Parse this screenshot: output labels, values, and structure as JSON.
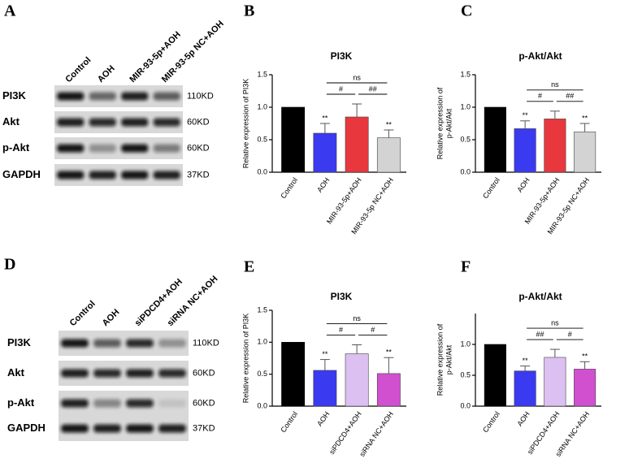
{
  "blots": [
    {
      "panel": "A",
      "lanes": [
        "Control",
        "AOH",
        "MIR-93-5p+AOH",
        "MIR-93-5p NC+AOH"
      ],
      "rows": [
        {
          "protein": "PI3K",
          "size": "110KD"
        },
        {
          "protein": "Akt",
          "size": "60KD"
        },
        {
          "protein": "p-Akt",
          "size": "60KD"
        },
        {
          "protein": "GAPDH",
          "size": "37KD"
        }
      ]
    },
    {
      "panel": "D",
      "lanes": [
        "Control",
        "AOH",
        "siPDCD4+AOH",
        "siRNA NC+AOH"
      ],
      "rows": [
        {
          "protein": "PI3K",
          "size": "110KD"
        },
        {
          "protein": "Akt",
          "size": "60KD"
        },
        {
          "protein": "p-Akt",
          "size": "60KD"
        },
        {
          "protein": "GAPDH",
          "size": "37KD"
        }
      ]
    }
  ],
  "chart_data": [
    {
      "type": "bar",
      "panel": "B",
      "title": "PI3K",
      "ylabel": [
        "Relative expression of PI3K"
      ],
      "categories": [
        "Control",
        "AOH",
        "MIR-93-5p+AOH",
        "MIR-93-5p NC+AOH"
      ],
      "values": [
        1.0,
        0.6,
        0.85,
        0.53
      ],
      "errors": [
        0,
        0.15,
        0.2,
        0.12
      ],
      "colors": [
        "#000000",
        "#3a3af0",
        "#e8383d",
        "#d3d3d3"
      ],
      "significance": [
        null,
        "**",
        null,
        "**"
      ],
      "brackets": [
        {
          "from": 1,
          "to": 2,
          "label": "#"
        },
        {
          "from": 2,
          "to": 3,
          "label": "##"
        },
        {
          "from": 1,
          "to": 3,
          "label": "ns"
        }
      ],
      "ylim": [
        0,
        1.5
      ],
      "yticks": [
        {
          "value": 0,
          "label": "0.0"
        },
        0.5,
        {
          "value": 1,
          "label": "1.0"
        },
        1.5
      ]
    },
    {
      "type": "bar",
      "panel": "C",
      "title": "p-Akt/Akt",
      "ylabel": [
        "Relative expression of",
        "p-Akt/Akt"
      ],
      "categories": [
        "Control",
        "AOH",
        "MIR-93-5p+AOH",
        "MIR-93-5p NC+AOH"
      ],
      "values": [
        1.0,
        0.67,
        0.82,
        0.62
      ],
      "errors": [
        0,
        0.12,
        0.12,
        0.13
      ],
      "colors": [
        "#000000",
        "#3a3af0",
        "#e8383d",
        "#d3d3d3"
      ],
      "significance": [
        null,
        "**",
        null,
        "**"
      ],
      "brackets": [
        {
          "from": 1,
          "to": 2,
          "label": "#"
        },
        {
          "from": 2,
          "to": 3,
          "label": "##"
        },
        {
          "from": 1,
          "to": 3,
          "label": "ns"
        }
      ],
      "ylim": [
        0,
        1.5
      ],
      "yticks": [
        {
          "value": 0,
          "label": "0.0"
        },
        0.5,
        {
          "value": 1,
          "label": "1.0"
        },
        1.5
      ]
    },
    {
      "type": "bar",
      "panel": "E",
      "title": "PI3K",
      "ylabel": [
        "Relative expression of PI3K"
      ],
      "categories": [
        "Control",
        "AOH",
        "siPDCD4+AOH",
        "siRNA NC+AOH"
      ],
      "values": [
        1.0,
        0.56,
        0.82,
        0.51
      ],
      "errors": [
        0,
        0.17,
        0.14,
        0.25
      ],
      "colors": [
        "#000000",
        "#3a3af0",
        "#dcc0f2",
        "#d050d0"
      ],
      "significance": [
        null,
        "**",
        null,
        "**"
      ],
      "brackets": [
        {
          "from": 1,
          "to": 2,
          "label": "#"
        },
        {
          "from": 2,
          "to": 3,
          "label": "#"
        },
        {
          "from": 1,
          "to": 3,
          "label": "ns"
        }
      ],
      "ylim": [
        0,
        1.5
      ],
      "yticks": [
        {
          "value": 0,
          "label": "0.0"
        },
        0.5,
        {
          "value": 1,
          "label": "1.0"
        },
        1.5
      ]
    },
    {
      "type": "bar",
      "panel": "F",
      "title": "p-Akt/Akt",
      "ylabel": [
        "Relative expression of",
        "p-Akt/Akt"
      ],
      "categories": [
        "Control",
        "AOH",
        "siPDCD4+AOH",
        "siRNA NC+AOH"
      ],
      "values": [
        1.0,
        0.57,
        0.79,
        0.6
      ],
      "errors": [
        0,
        0.08,
        0.13,
        0.12
      ],
      "colors": [
        "#000000",
        "#3a3af0",
        "#dcc0f2",
        "#d050d0"
      ],
      "significance": [
        null,
        "**",
        null,
        "**"
      ],
      "brackets": [
        {
          "from": 1,
          "to": 2,
          "label": "##"
        },
        {
          "from": 2,
          "to": 3,
          "label": "#"
        },
        {
          "from": 1,
          "to": 3,
          "label": "ns"
        }
      ],
      "ylim": [
        0,
        1.5
      ],
      "yticks": [
        {
          "value": 0,
          "label": "0.0"
        },
        0.5,
        {
          "value": 1,
          "label": "1.0"
        }
      ]
    }
  ]
}
